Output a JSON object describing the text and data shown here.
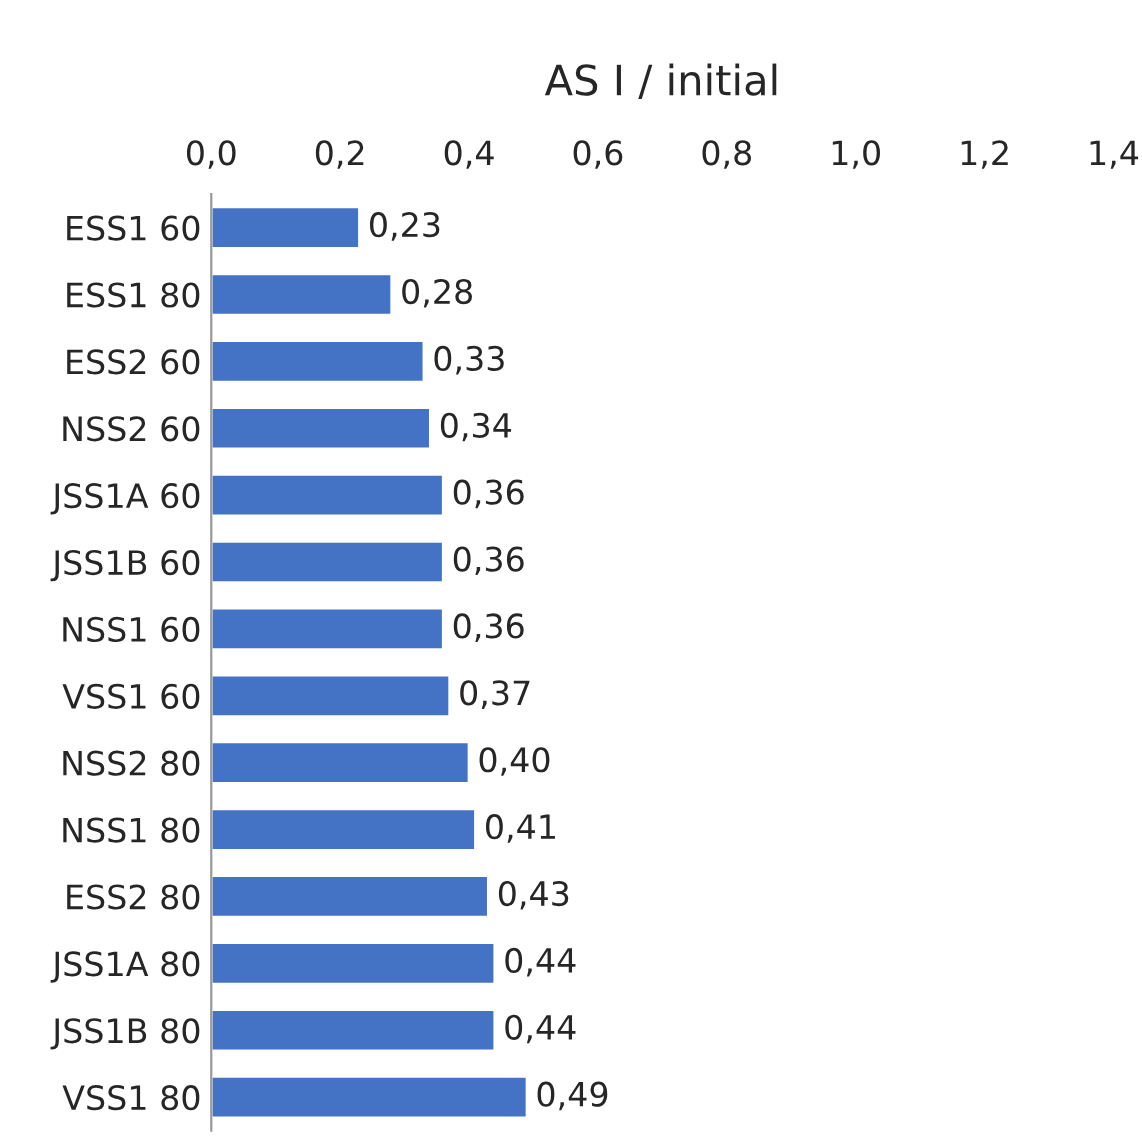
{
  "chart_data": {
    "type": "bar",
    "orientation": "horizontal",
    "xlabel": "AS I / initial",
    "categories": [
      "ESS1 60",
      "ESS1 80",
      "ESS2 60",
      "NSS2 60",
      "JSS1A 60",
      "JSS1B 60",
      "NSS1 60",
      "VSS1 60",
      "NSS2 80",
      "NSS1 80",
      "ESS2 80",
      "JSS1A 80",
      "JSS1B 80",
      "VSS1 80"
    ],
    "values": [
      0.23,
      0.28,
      0.33,
      0.34,
      0.36,
      0.36,
      0.36,
      0.37,
      0.4,
      0.41,
      0.43,
      0.44,
      0.44,
      0.49
    ],
    "value_labels": [
      "0,23",
      "0,28",
      "0,33",
      "0,34",
      "0,36",
      "0,36",
      "0,36",
      "0,37",
      "0,40",
      "0,41",
      "0,43",
      "0,44",
      "0,44",
      "0,49"
    ],
    "color": "#4472c4",
    "xlim": [
      0,
      1.4
    ],
    "xticks": [
      {
        "value": 0,
        "label": "0,0"
      },
      {
        "value": 0.2,
        "label": "0,2"
      },
      {
        "value": 0.4,
        "label": "0,4"
      },
      {
        "value": 0.6,
        "label": "0,6"
      },
      {
        "value": 0.8,
        "label": "0,8"
      },
      {
        "value": 1.0,
        "label": "1,0"
      },
      {
        "value": 1.2,
        "label": "1,2"
      },
      {
        "value": 1.4,
        "label": "1,4"
      }
    ],
    "grid": false,
    "legend": false
  }
}
